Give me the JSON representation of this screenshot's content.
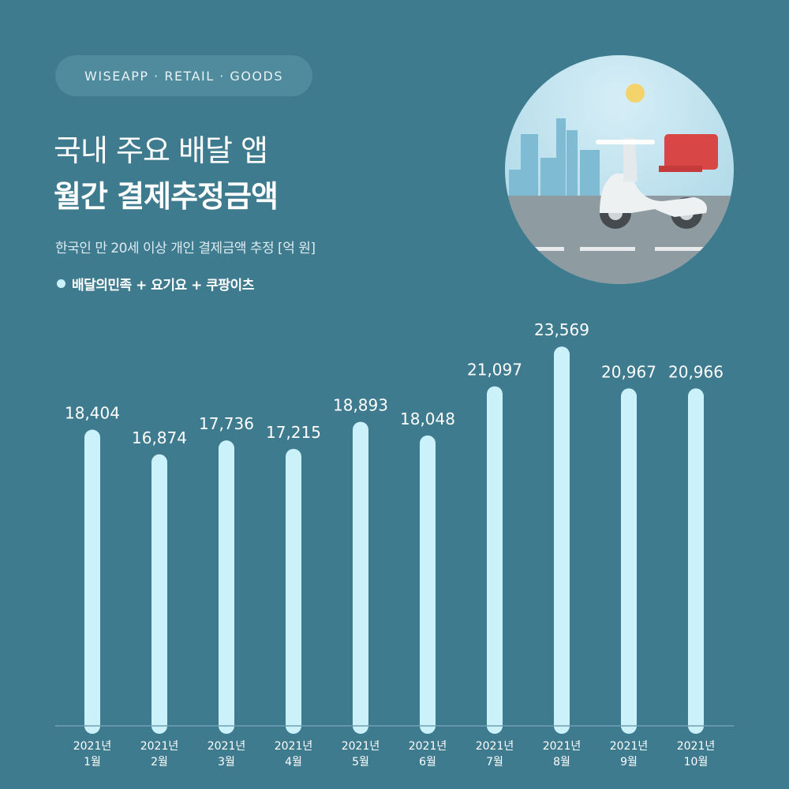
{
  "badge": "WISEAPP · RETAIL · GOODS",
  "title_line1": "국내 주요 배달 앱",
  "title_line2": "월간 결제추정금액",
  "subtitle": "한국인 만 20세 이상 개인 결제금액 추정 [억 원]",
  "legend_label": "배달의민족 + 요기요 + 쿠팡이츠",
  "colors": {
    "background": "#3f7b8f",
    "bar": "#cbf2fb",
    "badge": "#4f8a9d"
  },
  "chart_data": {
    "type": "bar",
    "categories": [
      "2021년 1월",
      "2021년 2월",
      "2021년 3월",
      "2021년 4월",
      "2021년 5월",
      "2021년 6월",
      "2021년 7월",
      "2021년 8월",
      "2021년 9월",
      "2021년 10월"
    ],
    "category_lines": [
      [
        "2021년",
        "1월"
      ],
      [
        "2021년",
        "2월"
      ],
      [
        "2021년",
        "3월"
      ],
      [
        "2021년",
        "4월"
      ],
      [
        "2021년",
        "5월"
      ],
      [
        "2021년",
        "6월"
      ],
      [
        "2021년",
        "7월"
      ],
      [
        "2021년",
        "8월"
      ],
      [
        "2021년",
        "9월"
      ],
      [
        "2021년",
        "10월"
      ]
    ],
    "series": [
      {
        "name": "배달의민족 + 요기요 + 쿠팡이츠",
        "values": [
          18404,
          16874,
          17736,
          17215,
          18893,
          18048,
          21097,
          23569,
          20967,
          20966
        ]
      }
    ],
    "value_labels": [
      "18,404",
      "16,874",
      "17,736",
      "17,215",
      "18,893",
      "18,048",
      "21,097",
      "23,569",
      "20,967",
      "20,966"
    ],
    "ylim": [
      0,
      25000
    ],
    "grid": false,
    "legend": "top-left"
  }
}
